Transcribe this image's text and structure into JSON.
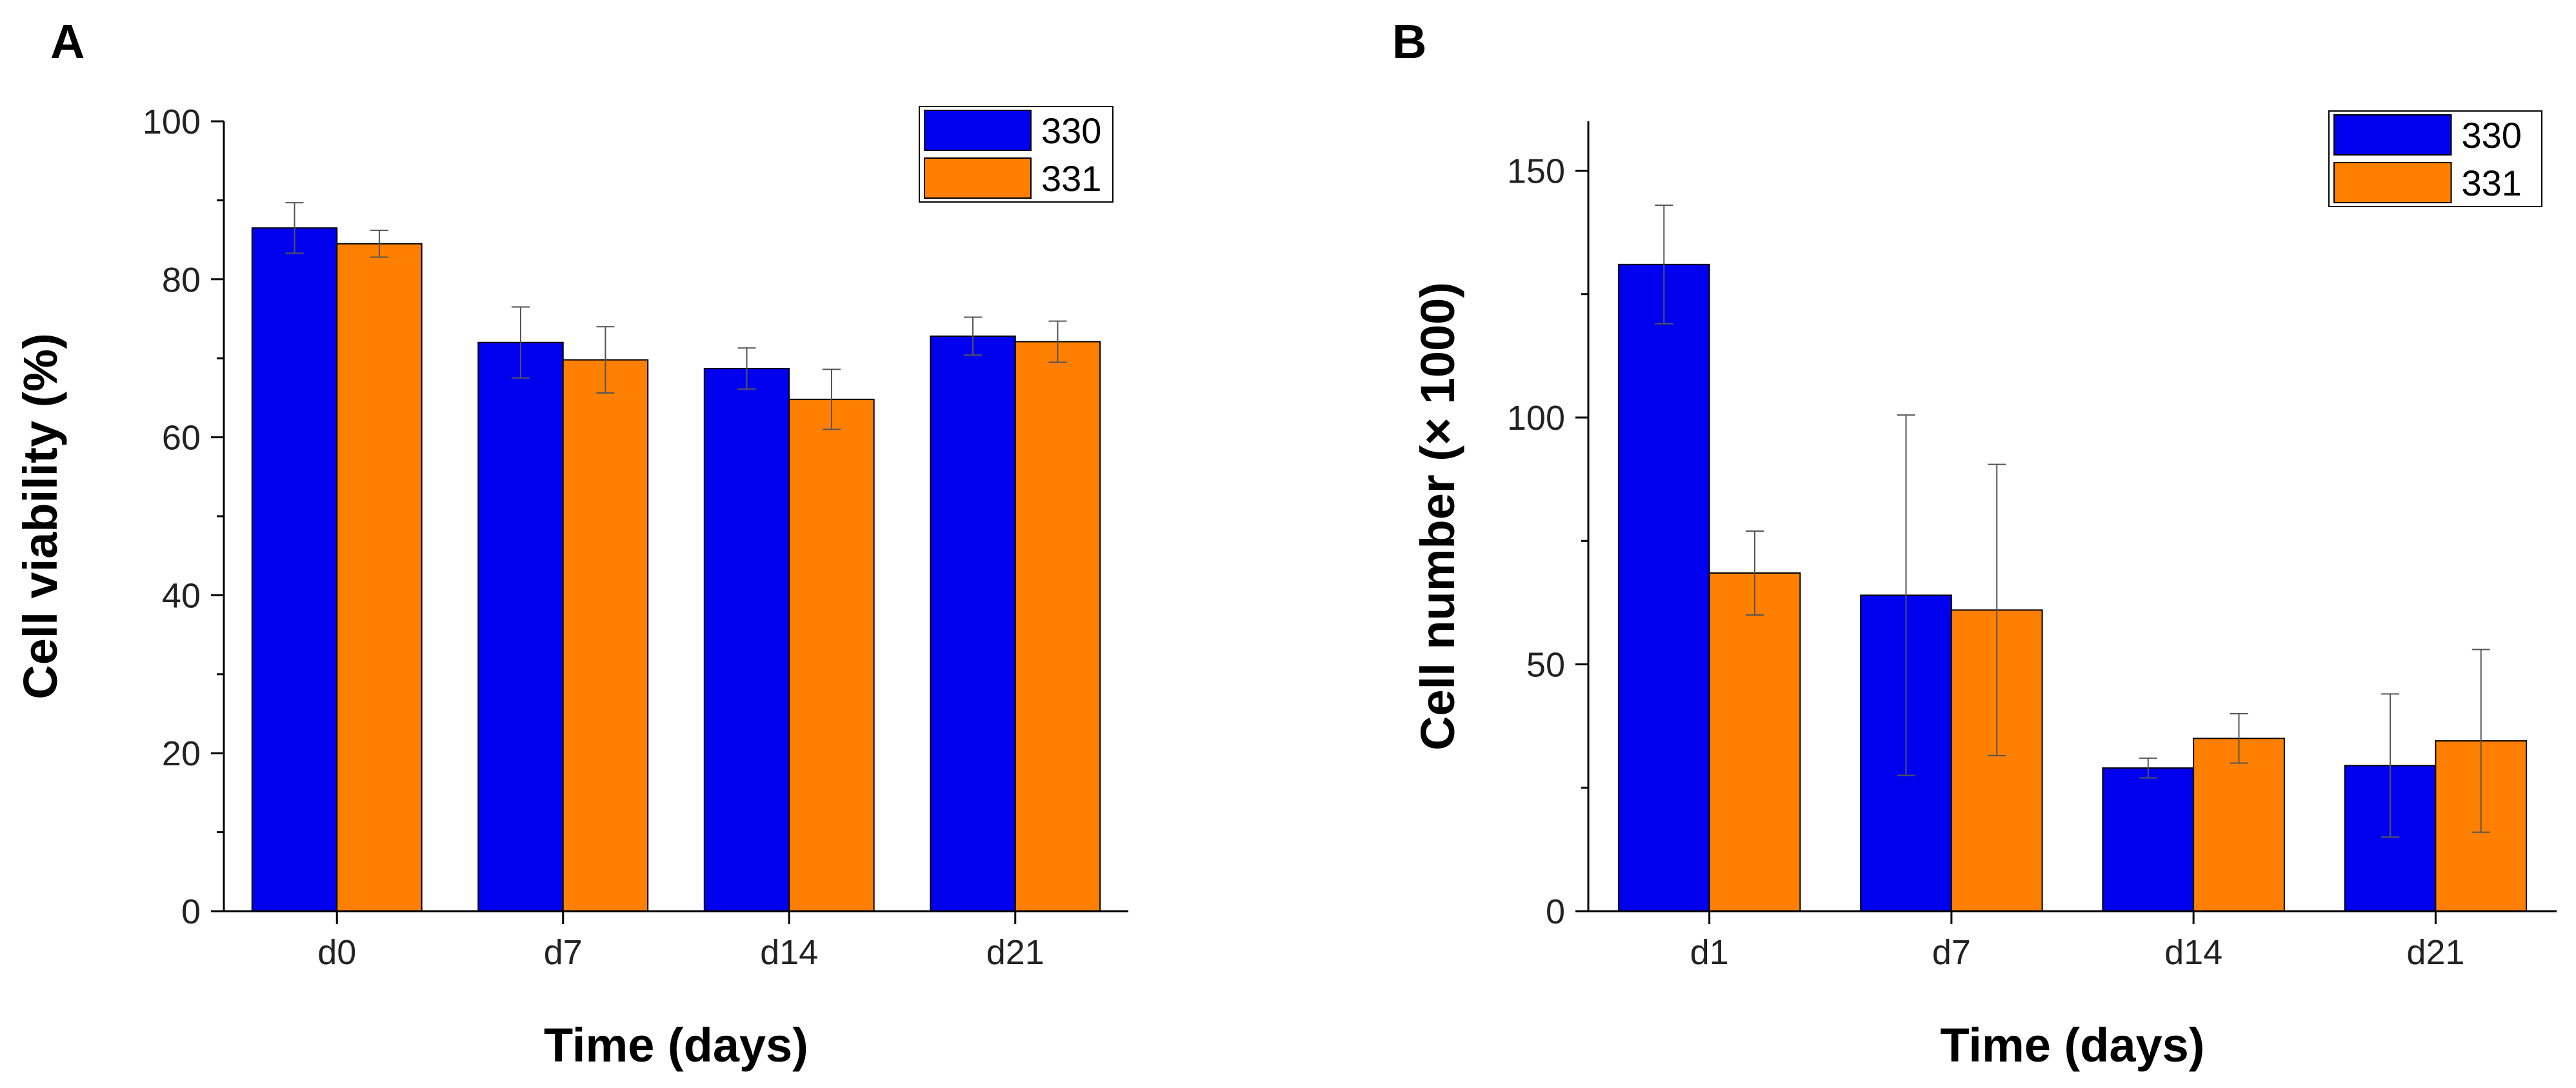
{
  "chart_data": [
    {
      "panel": "A",
      "type": "bar",
      "title": "",
      "xlabel": "Time (days)",
      "ylabel": "Cell viability (%)",
      "categories": [
        "d0",
        "d7",
        "d14",
        "d21"
      ],
      "ylim": [
        0,
        100
      ],
      "yticks": [
        0,
        20,
        40,
        60,
        80,
        100
      ],
      "legend_position": "top-right",
      "grid": false,
      "series": [
        {
          "name": "330",
          "color": "#0000ee",
          "values": [
            86.5,
            72,
            68.7,
            72.8
          ],
          "errors": [
            3.2,
            4.5,
            2.6,
            2.4
          ]
        },
        {
          "name": "331",
          "color": "#ff8000",
          "values": [
            84.5,
            69.8,
            64.8,
            72.1
          ],
          "errors": [
            1.7,
            4.2,
            3.8,
            2.6
          ]
        }
      ]
    },
    {
      "panel": "B",
      "type": "bar",
      "title": "",
      "xlabel": "Time (days)",
      "ylabel": "Cell number (× 1000)",
      "categories": [
        "d1",
        "d7",
        "d14",
        "d21"
      ],
      "ylim": [
        0,
        160
      ],
      "yticks": [
        0,
        50,
        100,
        150
      ],
      "legend_position": "top-right",
      "grid": false,
      "series": [
        {
          "name": "330",
          "color": "#0000ee",
          "values": [
            131,
            64,
            29,
            29.5
          ],
          "errors": [
            12,
            36.5,
            2,
            14.5
          ]
        },
        {
          "name": "331",
          "color": "#ff8000",
          "values": [
            68.5,
            61,
            35,
            34.5
          ],
          "errors": [
            8.5,
            29.5,
            5,
            18.5
          ]
        }
      ]
    }
  ]
}
